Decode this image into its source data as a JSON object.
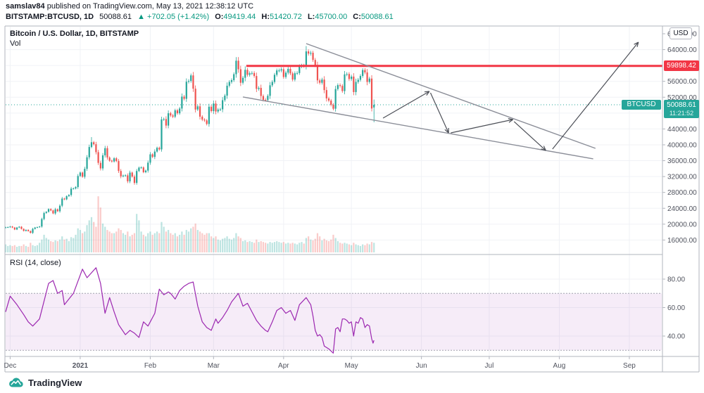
{
  "header": {
    "author": "samslav84",
    "published": " published on TradingView.com, May 13, 2021 12:38:12 UTC",
    "symbol_line": "BITSTAMP:BTCUSD, 1D",
    "last_price": "50088.61",
    "arrow_up": "▲",
    "change": "+702.05 (+1.42%)",
    "ohlc": {
      "o_label": "O:",
      "o": "49419.44",
      "h_label": "H:",
      "h": "51420.72",
      "l_label": "L:",
      "l": "45700.00",
      "c_label": "C:",
      "c": "50088.61"
    }
  },
  "chart": {
    "legend": "Bitcoin / U.S. Dollar, 1D, BITSTAMP",
    "vol_label": "Vol",
    "rsi_label": "RSI (14, close)",
    "usd_button": "USD",
    "price_labels": {
      "resistance_text": "59898.42",
      "last_text": "50088.61",
      "countdown": "11:21:52",
      "symbol_chip": "BTCUSD"
    }
  },
  "footer": {
    "brand": "TradingView"
  },
  "chart_data": {
    "type": "candlestick",
    "title": "Bitcoin / U.S. Dollar, 1D, BITSTAMP",
    "symbol": "BITSTAMP:BTCUSD",
    "interval": "1D",
    "price_axis": {
      "min": 16000,
      "max": 68000,
      "grid_step": 4000,
      "labels": [
        {
          "text": "68000.00",
          "p": 68000
        },
        {
          "text": "64000.00",
          "p": 64000
        },
        {
          "text": "56000.00",
          "p": 56000
        },
        {
          "text": "52000.00",
          "p": 52000
        },
        {
          "text": "44000.00",
          "p": 44000
        },
        {
          "text": "40000.00",
          "p": 40000
        },
        {
          "text": "36000.00",
          "p": 36000
        },
        {
          "text": "32000.00",
          "p": 32000
        },
        {
          "text": "28000.00",
          "p": 28000
        },
        {
          "text": "24000.00",
          "p": 24000
        },
        {
          "text": "20000.00",
          "p": 20000
        },
        {
          "text": "16000.00",
          "p": 16000
        }
      ]
    },
    "time_axis": {
      "labels": [
        {
          "text": "Dec",
          "i": 2
        },
        {
          "text": "2021",
          "i": 33,
          "bold": true
        },
        {
          "text": "Feb",
          "i": 64
        },
        {
          "text": "Mar",
          "i": 92
        },
        {
          "text": "Apr",
          "i": 123
        },
        {
          "text": "May",
          "i": 153
        },
        {
          "text": "Jun",
          "i": 184
        },
        {
          "text": "Jul",
          "i": 214
        },
        {
          "text": "Aug",
          "i": 245
        },
        {
          "text": "Sep",
          "i": 276
        }
      ]
    },
    "candles": {
      "closes": [
        19200,
        19250,
        19400,
        19150,
        18650,
        19150,
        19350,
        18800,
        18300,
        18550,
        18250,
        17800,
        18800,
        19150,
        19250,
        19400,
        21300,
        22800,
        23100,
        23800,
        23450,
        22700,
        23750,
        23250,
        24650,
        26450,
        26250,
        27050,
        27350,
        28950,
        29000,
        29350,
        32150,
        33000,
        31950,
        33950,
        36850,
        39450,
        40650,
        40150,
        38150,
        35450,
        34050,
        37350,
        39150,
        36800,
        36000,
        35800,
        36600,
        35900,
        33400,
        32050,
        32250,
        32300,
        30800,
        33000,
        31990,
        30400,
        33400,
        34250,
        34300,
        33100,
        33500,
        35500,
        37600,
        36950,
        38300,
        39250,
        38850,
        46400,
        46500,
        44850,
        47950,
        47400,
        47100,
        48700,
        47950,
        49150,
        52150,
        51600,
        55900,
        56100,
        57500,
        54150,
        48900,
        49700,
        47100,
        46350,
        46150,
        45250,
        49600,
        48500,
        50400,
        48400,
        48900,
        48950,
        51250,
        52400,
        54900,
        55850,
        56300,
        57800,
        61200,
        59050,
        55650,
        56900,
        58900,
        57650,
        58050,
        58100,
        57350,
        54100,
        54350,
        52300,
        51350,
        51300,
        52350,
        55000,
        55850,
        57650,
        58750,
        58750,
        59050,
        57100,
        58200,
        59150,
        58000,
        56450,
        58050,
        58100,
        59800,
        59950,
        59900,
        63550,
        63000,
        63200,
        61400,
        60050,
        56250,
        55650,
        56450,
        53800,
        51700,
        51150,
        50100,
        49100,
        54050,
        55050,
        54850,
        53550,
        57750,
        57850,
        56600,
        57200,
        53300,
        55850,
        56400,
        57350,
        58850,
        58250,
        55850,
        56700,
        49150
      ],
      "last": {
        "o": 49419.44,
        "h": 51420.72,
        "l": 45700.0,
        "c": 50088.61
      },
      "high_override": [
        [
          38,
          41950
        ],
        [
          133,
          64895
        ]
      ]
    },
    "volumes": [
      10,
      8,
      9,
      8,
      9,
      7,
      8,
      8,
      10,
      8,
      7,
      12,
      9,
      8,
      9,
      12,
      16,
      22,
      18,
      16,
      14,
      13,
      15,
      14,
      16,
      20,
      16,
      17,
      14,
      19,
      18,
      22,
      30,
      28,
      24,
      26,
      34,
      40,
      44,
      38,
      32,
      70,
      56,
      36,
      32,
      28,
      26,
      24,
      24,
      26,
      30,
      28,
      24,
      22,
      26,
      20,
      22,
      24,
      48,
      40,
      26,
      22,
      20,
      24,
      26,
      22,
      24,
      26,
      24,
      38,
      32,
      26,
      28,
      24,
      22,
      24,
      20,
      22,
      26,
      22,
      28,
      26,
      30,
      32,
      36,
      28,
      26,
      24,
      22,
      24,
      24,
      20,
      18,
      20,
      16,
      15,
      17,
      18,
      20,
      17,
      16,
      18,
      24,
      20,
      18,
      14,
      15,
      13,
      14,
      13,
      12,
      16,
      13,
      14,
      13,
      12,
      11,
      13,
      12,
      13,
      14,
      13,
      12,
      13,
      11,
      12,
      11,
      12,
      11,
      10,
      12,
      13,
      11,
      18,
      20,
      16,
      15,
      17,
      24,
      20,
      15,
      17,
      15,
      14,
      16,
      22,
      18,
      14,
      12,
      11,
      12,
      11,
      10,
      9,
      12,
      10,
      9,
      8,
      10,
      9,
      11,
      10,
      13,
      12
    ],
    "rsi": {
      "period_label": "RSI (14, close)",
      "grid": [
        80,
        60,
        40
      ],
      "band": [
        70,
        30
      ],
      "points": [
        [
          0,
          57
        ],
        [
          2,
          68
        ],
        [
          5,
          62
        ],
        [
          8,
          55
        ],
        [
          10,
          50
        ],
        [
          12,
          47
        ],
        [
          15,
          52
        ],
        [
          19,
          77
        ],
        [
          21,
          79
        ],
        [
          23,
          70
        ],
        [
          25,
          72
        ],
        [
          26,
          62
        ],
        [
          30,
          70
        ],
        [
          34,
          87
        ],
        [
          36,
          81
        ],
        [
          40,
          88
        ],
        [
          42,
          77
        ],
        [
          44,
          56
        ],
        [
          46,
          67
        ],
        [
          48,
          57
        ],
        [
          50,
          48
        ],
        [
          53,
          41
        ],
        [
          55,
          44
        ],
        [
          57,
          42
        ],
        [
          59,
          39
        ],
        [
          61,
          50
        ],
        [
          63,
          47
        ],
        [
          66,
          56
        ],
        [
          68,
          73
        ],
        [
          70,
          69
        ],
        [
          72,
          71
        ],
        [
          73,
          70
        ],
        [
          75,
          66
        ],
        [
          77,
          72
        ],
        [
          79,
          75
        ],
        [
          81,
          77
        ],
        [
          83,
          78
        ],
        [
          85,
          61
        ],
        [
          87,
          50
        ],
        [
          89,
          46
        ],
        [
          91,
          44
        ],
        [
          93,
          52
        ],
        [
          94,
          49
        ],
        [
          96,
          53
        ],
        [
          98,
          58
        ],
        [
          100,
          64
        ],
        [
          103,
          70
        ],
        [
          105,
          61
        ],
        [
          107,
          63
        ],
        [
          109,
          57
        ],
        [
          111,
          51
        ],
        [
          113,
          47
        ],
        [
          115,
          44
        ],
        [
          116,
          43
        ],
        [
          118,
          50
        ],
        [
          120,
          58
        ],
        [
          122,
          60
        ],
        [
          124,
          56
        ],
        [
          126,
          58
        ],
        [
          128,
          51
        ],
        [
          130,
          62
        ],
        [
          133,
          67
        ],
        [
          135,
          62
        ],
        [
          136,
          54
        ],
        [
          137,
          44
        ],
        [
          138,
          40
        ],
        [
          139,
          41
        ],
        [
          140,
          39
        ],
        [
          141,
          33
        ],
        [
          142,
          32
        ],
        [
          143,
          31
        ],
        [
          145,
          28
        ],
        [
          146,
          45
        ],
        [
          147,
          46
        ],
        [
          148,
          43
        ],
        [
          149,
          52
        ],
        [
          150,
          52
        ],
        [
          151,
          51
        ],
        [
          152,
          49
        ],
        [
          153,
          50
        ],
        [
          154,
          40
        ],
        [
          155,
          50
        ],
        [
          156,
          49
        ],
        [
          157,
          53
        ],
        [
          158,
          52
        ],
        [
          159,
          46
        ],
        [
          160,
          48
        ],
        [
          161,
          47
        ],
        [
          162,
          38
        ],
        [
          162.6,
          35
        ],
        [
          163,
          37
        ]
      ]
    },
    "drawings": {
      "horizontal_line": {
        "p": 59898.42,
        "from_i": 106.5
      },
      "current_price_line": {
        "p": 50088.61
      },
      "trendlines": [
        {
          "name": "wedge-resistance",
          "from": {
            "i": 133,
            "p": 65519
          },
          "to": {
            "i": 261,
            "p": 39116
          }
        },
        {
          "name": "wedge-support",
          "from": {
            "i": 105,
            "p": 52052
          },
          "to": {
            "i": 260,
            "p": 36453
          }
        }
      ],
      "arrows": [
        {
          "from": {
            "i": 167,
            "p": 46733
          },
          "to": {
            "i": 187.5,
            "p": 53470
          }
        },
        {
          "from": {
            "i": 188,
            "p": 53116
          },
          "to": {
            "i": 196,
            "p": 43013
          }
        },
        {
          "from": {
            "i": 197,
            "p": 43013
          },
          "to": {
            "i": 224.5,
            "p": 46378
          }
        },
        {
          "from": {
            "i": 225,
            "p": 45847
          },
          "to": {
            "i": 239,
            "p": 38583
          }
        },
        {
          "from": {
            "i": 242,
            "p": 38937
          },
          "to": {
            "i": 280,
            "p": 65874
          }
        }
      ]
    },
    "colors": {
      "up": "#26a69a",
      "down": "#ef5350",
      "vol_up": "rgba(38,166,154,0.30)",
      "vol_down": "rgba(239,83,80,0.30)",
      "resistance_red": "#f23645",
      "label_teal": "#26a69a",
      "rsi_line": "#9c27b0",
      "rsi_band_fill": "rgba(156,39,176,0.09)",
      "trendline": "#8b8e98",
      "arrow": "#4c4f57",
      "grid": "#f0f2f6",
      "frame": "#b2b5be",
      "axis_text": "#50535e"
    }
  }
}
